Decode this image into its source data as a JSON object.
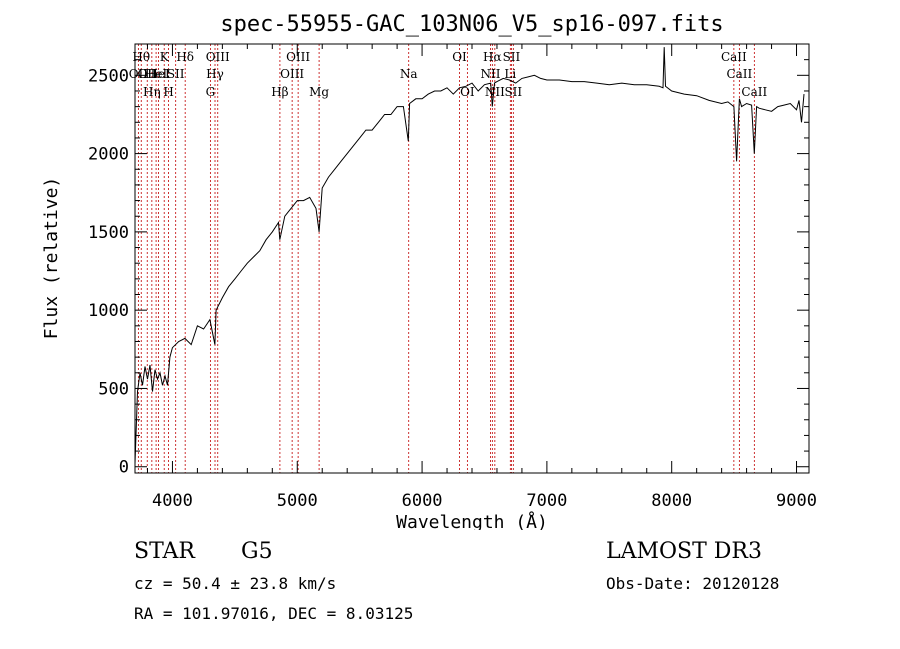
{
  "chart_data": {
    "type": "line",
    "title": "spec-55955-GAC_103N06_V5_sp16-097.fits",
    "xlabel": "Wavelength (Å)",
    "ylabel": "Flux (relative)",
    "xlim": [
      3700,
      9100
    ],
    "ylim": [
      -40,
      2700
    ],
    "xticks": [
      4000,
      5000,
      6000,
      7000,
      8000,
      9000
    ],
    "yticks": [
      0,
      500,
      1000,
      1500,
      2000,
      2500
    ],
    "series": [
      {
        "name": "flux",
        "x": [
          3700,
          3720,
          3740,
          3760,
          3780,
          3800,
          3820,
          3840,
          3860,
          3880,
          3900,
          3920,
          3940,
          3960,
          3980,
          4000,
          4050,
          4100,
          4150,
          4200,
          4250,
          4300,
          4340,
          4350,
          4400,
          4450,
          4500,
          4550,
          4600,
          4650,
          4700,
          4750,
          4800,
          4850,
          4860,
          4900,
          4950,
          5000,
          5050,
          5100,
          5150,
          5175,
          5200,
          5250,
          5300,
          5350,
          5400,
          5450,
          5500,
          5550,
          5600,
          5650,
          5700,
          5750,
          5800,
          5850,
          5890,
          5900,
          5950,
          6000,
          6050,
          6100,
          6150,
          6200,
          6250,
          6300,
          6350,
          6400,
          6450,
          6500,
          6550,
          6563,
          6580,
          6600,
          6650,
          6700,
          6750,
          6800,
          6850,
          6900,
          6950,
          7000,
          7100,
          7200,
          7300,
          7400,
          7500,
          7600,
          7700,
          7800,
          7900,
          7930,
          7940,
          7950,
          8000,
          8100,
          8200,
          8300,
          8400,
          8450,
          8498,
          8520,
          8542,
          8560,
          8600,
          8640,
          8662,
          8680,
          8700,
          8750,
          8800,
          8850,
          8900,
          8950,
          9000,
          9020,
          9040,
          9060
        ],
        "values": [
          20,
          480,
          600,
          520,
          640,
          560,
          650,
          480,
          620,
          560,
          600,
          520,
          580,
          520,
          700,
          760,
          800,
          820,
          780,
          900,
          880,
          940,
          780,
          1000,
          1080,
          1150,
          1200,
          1250,
          1300,
          1340,
          1380,
          1450,
          1500,
          1560,
          1450,
          1600,
          1650,
          1700,
          1700,
          1720,
          1650,
          1500,
          1780,
          1850,
          1900,
          1950,
          2000,
          2050,
          2100,
          2150,
          2150,
          2200,
          2250,
          2250,
          2300,
          2300,
          2080,
          2320,
          2350,
          2350,
          2380,
          2400,
          2400,
          2420,
          2380,
          2420,
          2430,
          2450,
          2400,
          2440,
          2450,
          2300,
          2450,
          2460,
          2480,
          2470,
          2450,
          2480,
          2490,
          2500,
          2480,
          2470,
          2470,
          2460,
          2460,
          2450,
          2440,
          2450,
          2440,
          2440,
          2430,
          2420,
          2680,
          2430,
          2400,
          2380,
          2370,
          2340,
          2320,
          2330,
          2300,
          1950,
          2350,
          2300,
          2320,
          2310,
          2000,
          2300,
          2290,
          2280,
          2270,
          2300,
          2310,
          2320,
          2280,
          2340,
          2200,
          2380
        ]
      }
    ],
    "lines": [
      {
        "wave": 3727,
        "label": "OII",
        "row": 2
      },
      {
        "wave": 3750,
        "label": "Hθ",
        "row": 1
      },
      {
        "wave": 3798,
        "label": "OII",
        "row": 2
      },
      {
        "wave": 3835,
        "label": "Hη",
        "row": 3
      },
      {
        "wave": 3869,
        "label": "HeI",
        "row": 2
      },
      {
        "wave": 3889,
        "label": "HeI",
        "row": 2
      },
      {
        "wave": 3934,
        "label": "K",
        "row": 1
      },
      {
        "wave": 3969,
        "label": "H",
        "row": 3
      },
      {
        "wave": 4026,
        "label": "SII",
        "row": 2
      },
      {
        "wave": 4102,
        "label": "Hδ",
        "row": 1
      },
      {
        "wave": 4304,
        "label": "G",
        "row": 3
      },
      {
        "wave": 4341,
        "label": "Hγ",
        "row": 2
      },
      {
        "wave": 4363,
        "label": "OIII",
        "row": 1
      },
      {
        "wave": 4861,
        "label": "Hβ",
        "row": 3
      },
      {
        "wave": 4959,
        "label": "OIII",
        "row": 2
      },
      {
        "wave": 5007,
        "label": "OIII",
        "row": 1
      },
      {
        "wave": 5175,
        "label": "Mg",
        "row": 3
      },
      {
        "wave": 5893,
        "label": "Na",
        "row": 2
      },
      {
        "wave": 6300,
        "label": "OI",
        "row": 1
      },
      {
        "wave": 6363,
        "label": "OI",
        "row": 3
      },
      {
        "wave": 6548,
        "label": "NII",
        "row": 2
      },
      {
        "wave": 6563,
        "label": "Hα",
        "row": 1
      },
      {
        "wave": 6583,
        "label": "NII",
        "row": 3
      },
      {
        "wave": 6707,
        "label": "Li",
        "row": 2
      },
      {
        "wave": 6716,
        "label": "SII",
        "row": 1
      },
      {
        "wave": 6731,
        "label": "SII",
        "row": 3
      },
      {
        "wave": 8498,
        "label": "CaII",
        "row": 1
      },
      {
        "wave": 8542,
        "label": "CaII",
        "row": 2
      },
      {
        "wave": 8662,
        "label": "CaII",
        "row": 3
      }
    ]
  },
  "info": {
    "object_class": "STAR",
    "subclass": "G5",
    "cz": "cz = 50.4 ± 23.8 km/s",
    "coords": "RA = 101.97016, DEC =   8.03125",
    "survey": "LAMOST DR3",
    "obs_date": "Obs-Date: 20120128"
  },
  "colors": {
    "spectrum": "#000000",
    "line_marker": "#c00000",
    "axis": "#000000"
  }
}
